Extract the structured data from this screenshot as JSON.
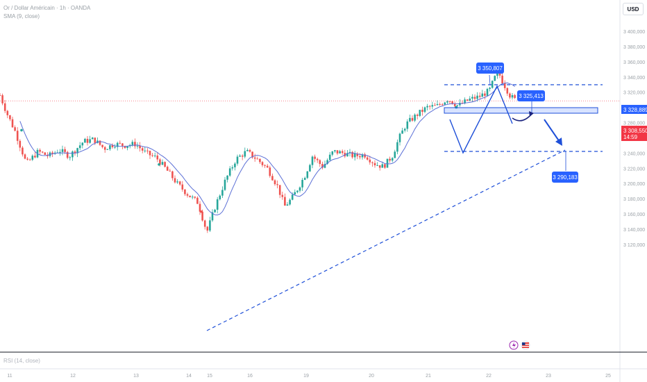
{
  "header": {
    "symbol_line": "Or / Dollar Américain · 1h · OANDA",
    "indicator_line": "SMA (9, close)"
  },
  "currency": "USD",
  "rsi_label": "RSI (14, close)",
  "colors": {
    "up": "#26a69a",
    "down": "#ef5350",
    "sma": "#5b6fd6",
    "drawing": "#1e4fd8",
    "label_bg": "#2962ff",
    "current_price_tag": "#f23645"
  },
  "chart_data": {
    "type": "candlestick",
    "x_ticks": [
      "11",
      "12",
      "13",
      "14",
      "15",
      "16",
      "19",
      "20",
      "21",
      "22",
      "23",
      "25"
    ],
    "y_ticks": [
      3400,
      3380,
      3360,
      3340,
      3320,
      3300,
      3280,
      3260,
      3240,
      3220,
      3200,
      3180,
      3160,
      3140,
      3120
    ],
    "y_tick_labels": [
      "3 400,000",
      "3 380,000",
      "3 360,000",
      "3 340,000",
      "3 320,000",
      "3 300,000",
      "3 280,000",
      "3 260,000",
      "3 240,000",
      "3 220,000",
      "3 200,000",
      "3 180,000",
      "3 160,000",
      "3 140,000",
      "3 120,000"
    ],
    "ylim": [
      3110,
      3420
    ],
    "pivot_points": [
      [
        0,
        3316
      ],
      [
        10,
        3292
      ],
      [
        22,
        3268
      ],
      [
        38,
        3226
      ],
      [
        55,
        3242
      ],
      [
        70,
        3236
      ],
      [
        85,
        3244
      ],
      [
        100,
        3236
      ],
      [
        120,
        3255
      ],
      [
        135,
        3258
      ],
      [
        150,
        3246
      ],
      [
        165,
        3252
      ],
      [
        180,
        3250
      ],
      [
        195,
        3252
      ],
      [
        210,
        3240
      ],
      [
        225,
        3234
      ],
      [
        240,
        3218
      ],
      [
        255,
        3200
      ],
      [
        270,
        3186
      ],
      [
        285,
        3175
      ],
      [
        298,
        3136
      ],
      [
        310,
        3170
      ],
      [
        325,
        3205
      ],
      [
        340,
        3232
      ],
      [
        355,
        3242
      ],
      [
        370,
        3232
      ],
      [
        385,
        3220
      ],
      [
        400,
        3196
      ],
      [
        410,
        3170
      ],
      [
        420,
        3180
      ],
      [
        430,
        3195
      ],
      [
        440,
        3212
      ],
      [
        450,
        3236
      ],
      [
        465,
        3222
      ],
      [
        480,
        3242
      ],
      [
        495,
        3240
      ],
      [
        510,
        3236
      ],
      [
        525,
        3238
      ],
      [
        540,
        3226
      ],
      [
        552,
        3222
      ],
      [
        565,
        3236
      ],
      [
        575,
        3260
      ],
      [
        585,
        3278
      ],
      [
        600,
        3290
      ],
      [
        615,
        3300
      ],
      [
        630,
        3302
      ],
      [
        645,
        3311
      ],
      [
        660,
        3302
      ],
      [
        675,
        3310
      ],
      [
        690,
        3314
      ],
      [
        705,
        3322
      ],
      [
        712,
        3338
      ],
      [
        718,
        3346
      ],
      [
        725,
        3332
      ],
      [
        735,
        3315
      ],
      [
        742,
        3310
      ]
    ],
    "last_price": "3 308,550",
    "countdown": "14:59",
    "zone_price": "3 328,889",
    "annotations": [
      "3 350,807",
      "3 325,413",
      "3 290,183"
    ]
  },
  "event_icons": [
    "lightning-icon",
    "us-flag-icon"
  ]
}
